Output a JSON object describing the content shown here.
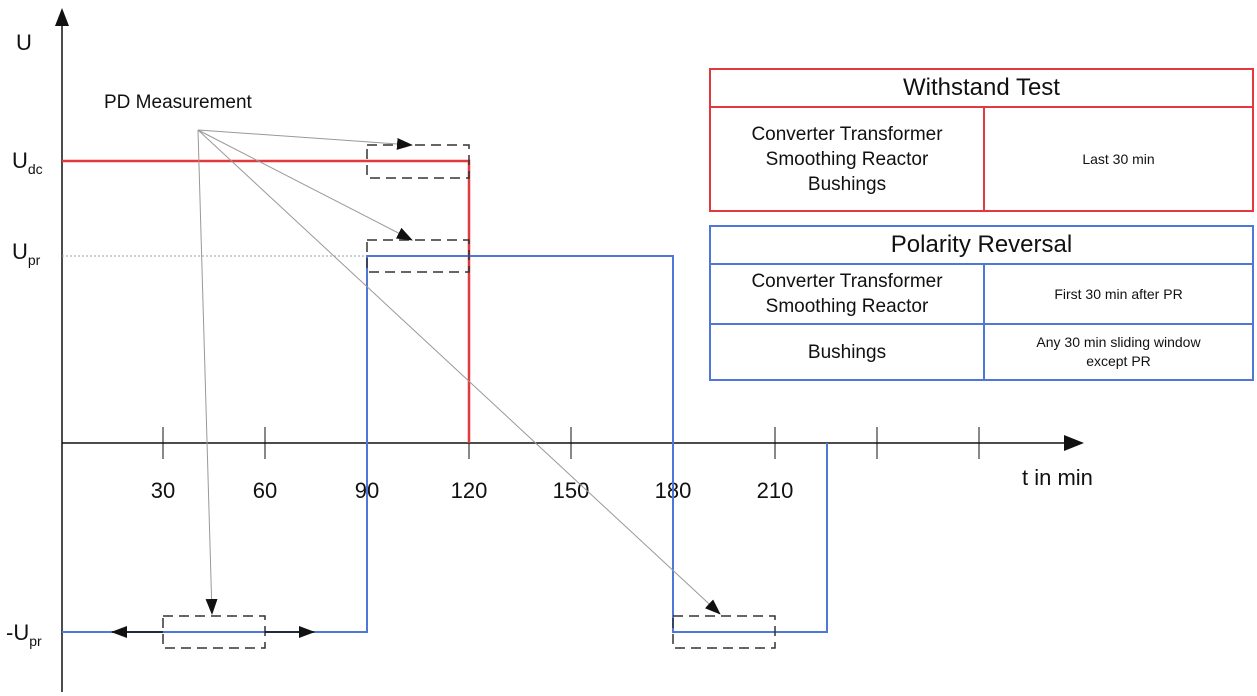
{
  "axes": {
    "y_label": "U",
    "y_levels": [
      {
        "base": "U",
        "sub": "dc",
        "prefix": ""
      },
      {
        "base": "U",
        "sub": "pr",
        "prefix": ""
      },
      {
        "base": "U",
        "sub": "pr",
        "prefix": "-"
      }
    ],
    "x_label": "t in min",
    "x_ticks": [
      "30",
      "60",
      "90",
      "120",
      "150",
      "180",
      "210"
    ]
  },
  "pd_label": "PD Measurement",
  "tables": {
    "withstand": {
      "title": "Withstand Test",
      "rows": [
        {
          "items": [
            "Converter Transformer",
            "Smoothing Reactor",
            "Bushings"
          ],
          "window": [
            "Last 30 min"
          ]
        }
      ]
    },
    "reversal": {
      "title": "Polarity Reversal",
      "rows": [
        {
          "items": [
            "Converter Transformer",
            "Smoothing Reactor"
          ],
          "window": [
            "First 30 min after PR"
          ]
        },
        {
          "items": [
            "Bushings"
          ],
          "window": [
            "Any 30 min sliding window",
            "except PR"
          ]
        }
      ]
    }
  },
  "colors": {
    "withstand": "#e0393e",
    "polarity_reversal": "#4f77d8",
    "axis": "#111111",
    "pointer": "#999999"
  }
}
